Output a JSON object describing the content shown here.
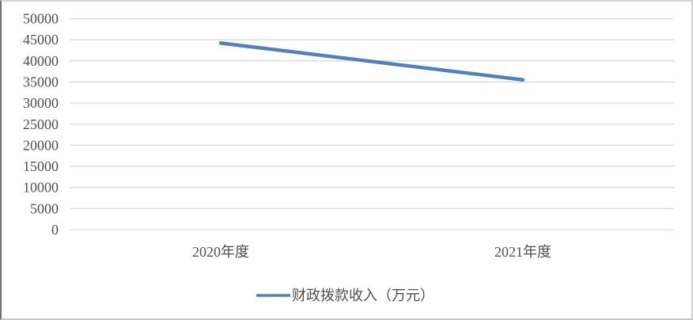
{
  "chart_data": {
    "type": "line",
    "title": "",
    "xlabel": "",
    "ylabel": "",
    "categories": [
      "2020年度",
      "2021年度"
    ],
    "series": [
      {
        "name": "财政拨款收入（万元）",
        "values": [
          44200,
          35500
        ],
        "color": "#4F81BD"
      }
    ],
    "ylim": [
      0,
      50000
    ],
    "ytick_step": 5000,
    "yticks": [
      0,
      5000,
      10000,
      15000,
      20000,
      25000,
      30000,
      35000,
      40000,
      45000,
      50000
    ],
    "grid": true,
    "legend_position": "bottom-center",
    "grid_color": "#D9D9D9",
    "text_color": "#4F4F4F"
  }
}
